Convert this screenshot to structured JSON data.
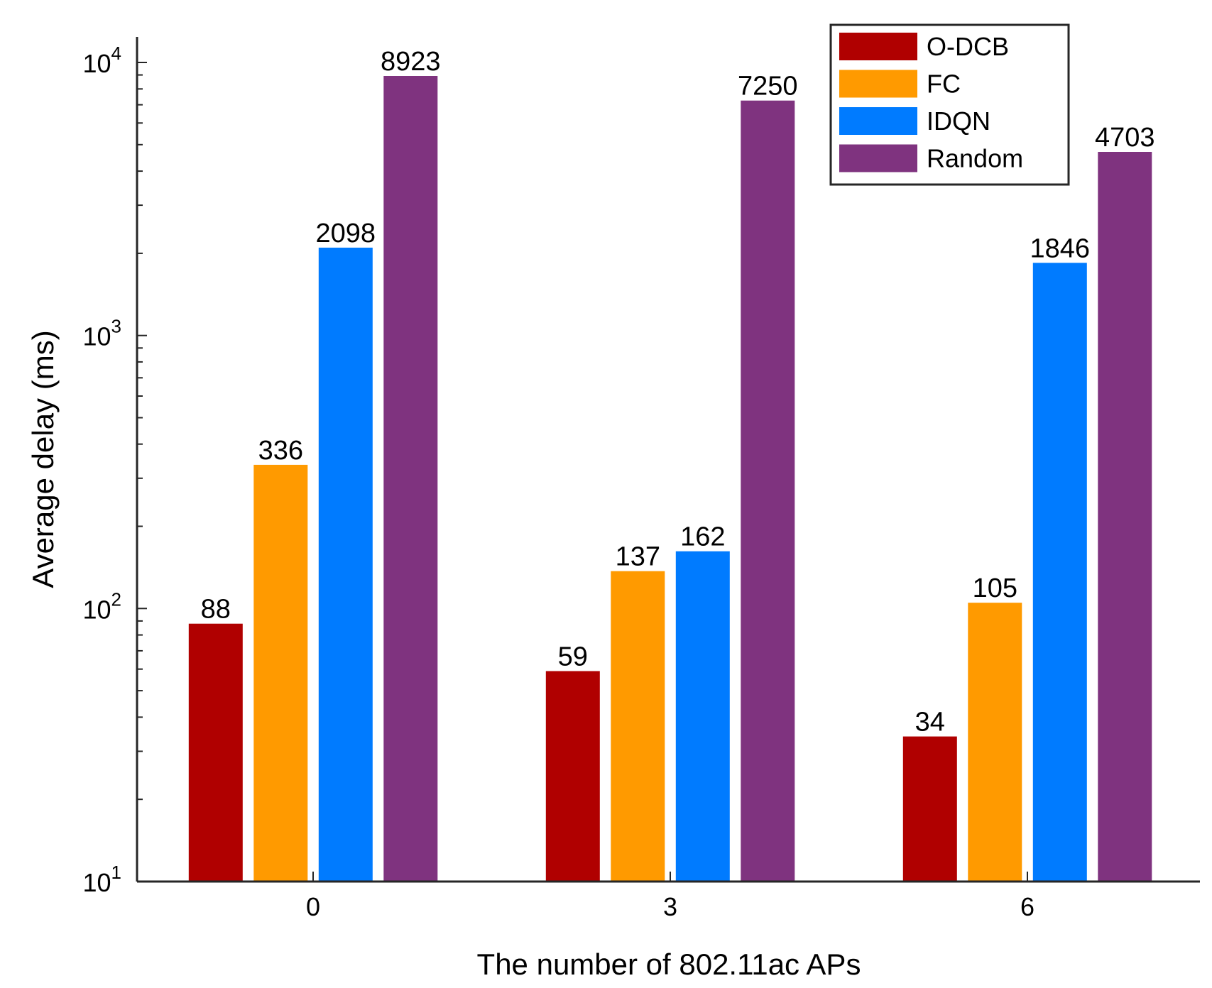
{
  "chart_data": {
    "type": "bar",
    "scale": "log",
    "xlabel": "The number of 802.11ac APs",
    "ylabel": "Average delay (ms)",
    "categories": [
      "0",
      "3",
      "6"
    ],
    "ylim": [
      10,
      13000
    ],
    "yticks": [
      {
        "value": 10,
        "base": "10",
        "exp": "1"
      },
      {
        "value": 100,
        "base": "10",
        "exp": "2"
      },
      {
        "value": 1000,
        "base": "10",
        "exp": "3"
      },
      {
        "value": 10000,
        "base": "10",
        "exp": "4"
      }
    ],
    "series": [
      {
        "name": "O-DCB",
        "color": "#b00000",
        "values": [
          88,
          59,
          34
        ]
      },
      {
        "name": "FC",
        "color": "#ff9a00",
        "values": [
          336,
          137,
          105
        ]
      },
      {
        "name": "IDQN",
        "color": "#007bff",
        "values": [
          2098,
          162,
          1846
        ]
      },
      {
        "name": "Random",
        "color": "#7f337f",
        "values": [
          8923,
          7250,
          4703
        ]
      }
    ],
    "legend_position": "top-right"
  }
}
